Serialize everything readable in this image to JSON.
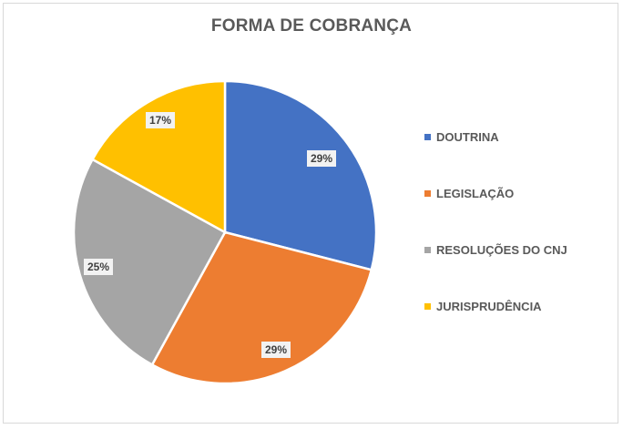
{
  "title": "FORMA DE COBRANÇA",
  "chart_data": {
    "type": "pie",
    "title": "FORMA DE COBRANÇA",
    "categories": [
      "DOUTRINA",
      "LEGISLAÇÃO",
      "RESOLUÇÕES DO CNJ",
      "JURISPRUDÊNCIA"
    ],
    "values": [
      29,
      29,
      25,
      17
    ],
    "unit": "%",
    "colors": [
      "#4472c4",
      "#ed7d31",
      "#a5a5a5",
      "#ffc000"
    ],
    "legend_position": "right",
    "start_angle_deg": 0,
    "direction": "clockwise"
  },
  "labels": {
    "doutrina": "29%",
    "legislacao": "29%",
    "resolucoes": "25%",
    "jurisprudencia": "17%"
  },
  "legend": [
    {
      "label": "DOUTRINA",
      "color": "#4472c4"
    },
    {
      "label": "LEGISLAÇÃO",
      "color": "#ed7d31"
    },
    {
      "label": "RESOLUÇÕES DO CNJ",
      "color": "#a5a5a5"
    },
    {
      "label": "JURISPRUDÊNCIA",
      "color": "#ffc000"
    }
  ]
}
